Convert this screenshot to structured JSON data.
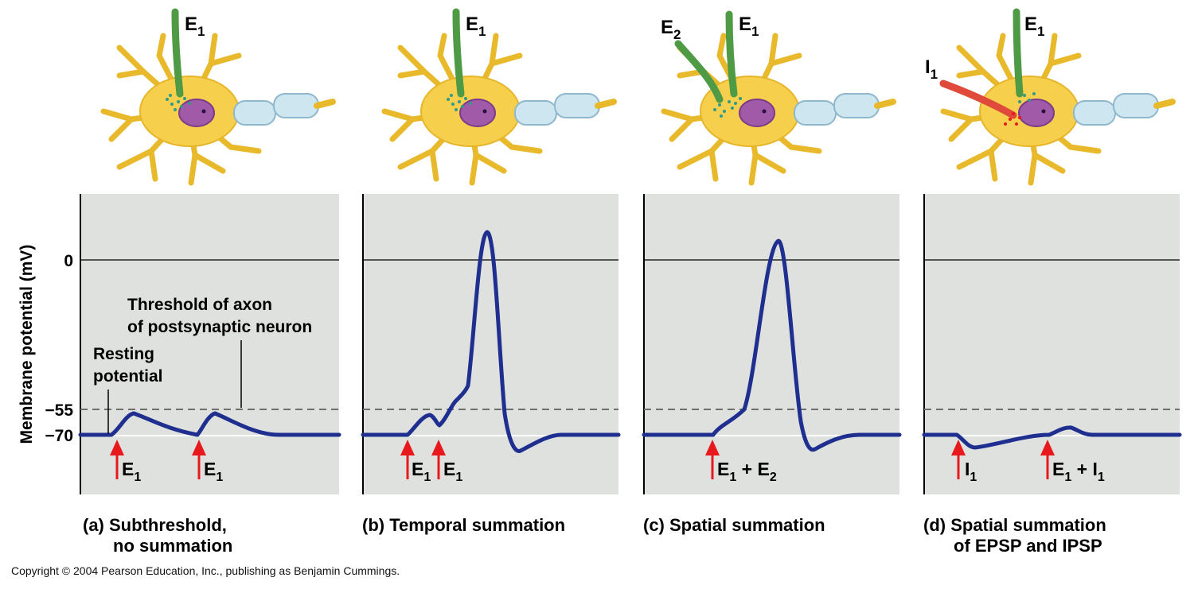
{
  "y_axis": {
    "label": "Membrane potential (mV)",
    "ticks": [
      "0",
      "−55",
      "−70"
    ]
  },
  "annotations": {
    "threshold_line1": "Threshold of axon",
    "threshold_line2": "of postsynaptic neuron",
    "resting_line1": "Resting",
    "resting_line2": "potential"
  },
  "panels": [
    {
      "id": "a",
      "neuron_labels": [
        {
          "base": "E",
          "sub": "1"
        }
      ],
      "stimuli": [
        {
          "base": "E",
          "sub": "1",
          "suffix": ""
        },
        {
          "base": "E",
          "sub": "1",
          "suffix": ""
        }
      ],
      "caption_line1": "(a) Subthreshold,",
      "caption_line2": "no summation"
    },
    {
      "id": "b",
      "neuron_labels": [
        {
          "base": "E",
          "sub": "1"
        }
      ],
      "stimuli": [
        {
          "base": "E",
          "sub": "1",
          "suffix": ""
        },
        {
          "base": "E",
          "sub": "1",
          "suffix": ""
        }
      ],
      "caption_line1": "(b) Temporal summation",
      "caption_line2": ""
    },
    {
      "id": "c",
      "neuron_labels": [
        {
          "base": "E",
          "sub": "2"
        },
        {
          "base": "E",
          "sub": "1"
        }
      ],
      "stimuli": [
        {
          "base": "E",
          "sub": "1",
          "suffix": " + E",
          "sub2": "2"
        }
      ],
      "caption_line1": "(c) Spatial summation",
      "caption_line2": ""
    },
    {
      "id": "d",
      "neuron_labels": [
        {
          "base": "I",
          "sub": "1"
        },
        {
          "base": "E",
          "sub": "1"
        }
      ],
      "stimuli": [
        {
          "base": "I",
          "sub": "1",
          "suffix": ""
        },
        {
          "base": "E",
          "sub": "1",
          "suffix": " + I",
          "sub2": "1"
        }
      ],
      "caption_line1": "(d) Spatial summation",
      "caption_line2": "of EPSP and IPSP"
    }
  ],
  "copyright": "Copyright © 2004 Pearson Education, Inc., publishing as Benjamin Cummings.",
  "colors": {
    "panel_bg": "#dfe1df",
    "trace": "#1f2f8f",
    "stimulus_arrow": "#e8191c",
    "excitatory_axon": "#4f9a45",
    "inhibitory_axon": "#e04a3a",
    "neuron_body": "#f6cf4c",
    "nucleus": "#a05aa8",
    "myelin": "#cde6f0",
    "threshold_dash": "#6f6f6f"
  }
}
